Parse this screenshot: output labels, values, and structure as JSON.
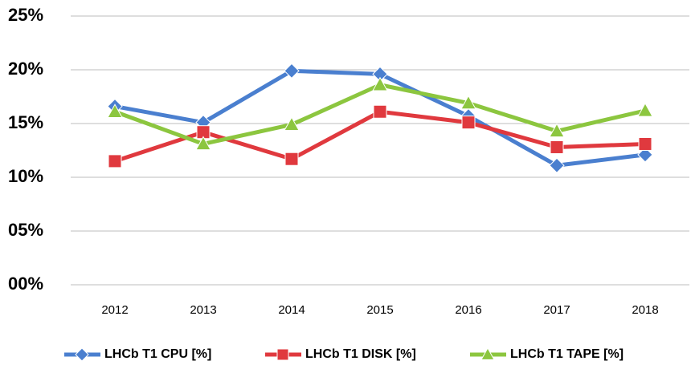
{
  "chart_data": {
    "type": "line",
    "categories": [
      "2012",
      "2013",
      "2014",
      "2015",
      "2016",
      "2017",
      "2018"
    ],
    "series": [
      {
        "name": "LHCb T1 CPU [%]",
        "color": "#4a7fcf",
        "marker": "diamond",
        "values": [
          16.6,
          15.1,
          19.9,
          19.6,
          15.7,
          11.1,
          12.1
        ]
      },
      {
        "name": "LHCb T1 DISK [%]",
        "color": "#e0393e",
        "marker": "square",
        "values": [
          11.5,
          14.2,
          11.7,
          16.1,
          15.1,
          12.8,
          13.1
        ]
      },
      {
        "name": "LHCb T1 TAPE [%]",
        "color": "#8cc63f",
        "marker": "triangle",
        "values": [
          16.1,
          13.1,
          14.9,
          18.6,
          16.9,
          14.3,
          16.2
        ]
      }
    ],
    "ylim": [
      0,
      25
    ],
    "yticks": [
      {
        "value": 0,
        "label": "00%"
      },
      {
        "value": 5,
        "label": "05%"
      },
      {
        "value": 10,
        "label": "10%"
      },
      {
        "value": 15,
        "label": "15%"
      },
      {
        "value": 20,
        "label": "20%"
      },
      {
        "value": 25,
        "label": "25%"
      }
    ],
    "grid": true,
    "legend": "bottom"
  }
}
